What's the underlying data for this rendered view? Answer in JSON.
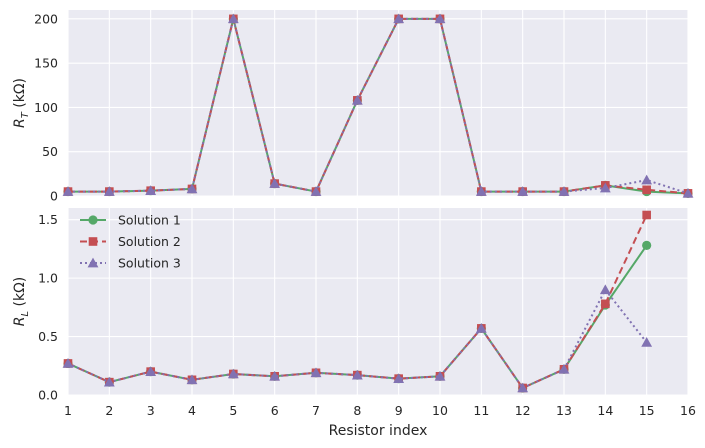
{
  "chart_data": [
    {
      "type": "line",
      "ylabel_main": "R",
      "ylabel_sub": "T",
      "ylabel_unit": " (kΩ)",
      "xlim": [
        1,
        16
      ],
      "ylim": [
        0,
        210
      ],
      "yticks": [
        0,
        50,
        100,
        150,
        200
      ],
      "grid": true,
      "series": [
        {
          "name": "Solution 1",
          "color": "#55a868",
          "marker": "circle",
          "dash": "solid",
          "x": [
            1,
            2,
            3,
            4,
            5,
            6,
            7,
            8,
            9,
            10,
            11,
            12,
            13,
            14,
            15,
            16
          ],
          "values": [
            5,
            5,
            6,
            8,
            200,
            14,
            5,
            108,
            200,
            200,
            5,
            5,
            5,
            12,
            5,
            3
          ]
        },
        {
          "name": "Solution 2",
          "color": "#c44e52",
          "marker": "square",
          "dash": "dashed",
          "x": [
            1,
            2,
            3,
            4,
            5,
            6,
            7,
            8,
            9,
            10,
            11,
            12,
            13,
            14,
            15,
            16
          ],
          "values": [
            5,
            5,
            6,
            8,
            200,
            14,
            5,
            108,
            200,
            200,
            5,
            5,
            5,
            12,
            7,
            3
          ]
        },
        {
          "name": "Solution 3",
          "color": "#8172b2",
          "marker": "triangle",
          "dash": "dotted",
          "x": [
            1,
            2,
            3,
            4,
            5,
            6,
            7,
            8,
            9,
            10,
            11,
            12,
            13,
            14,
            15,
            16
          ],
          "values": [
            5,
            5,
            6,
            8,
            200,
            14,
            5,
            108,
            200,
            200,
            5,
            5,
            5,
            9,
            18,
            3
          ]
        }
      ]
    },
    {
      "type": "line",
      "ylabel_main": "R",
      "ylabel_sub": "L",
      "ylabel_unit": " (kΩ)",
      "xlabel": "Resistor index",
      "xlim": [
        1,
        16
      ],
      "ylim": [
        0,
        1.6
      ],
      "yticks": [
        0.0,
        0.5,
        1.0,
        1.5
      ],
      "ytick_labels": [
        "0.0",
        "0.5",
        "1.0",
        "1.5"
      ],
      "xticks": [
        1,
        2,
        3,
        4,
        5,
        6,
        7,
        8,
        9,
        10,
        11,
        12,
        13,
        14,
        15,
        16
      ],
      "grid": true,
      "legend_position": "upper-left",
      "series": [
        {
          "name": "Solution 1",
          "color": "#55a868",
          "marker": "circle",
          "dash": "solid",
          "x": [
            1,
            2,
            3,
            4,
            5,
            6,
            7,
            8,
            9,
            10,
            11,
            12,
            13,
            14,
            15
          ],
          "values": [
            0.27,
            0.11,
            0.2,
            0.13,
            0.18,
            0.16,
            0.19,
            0.17,
            0.14,
            0.16,
            0.57,
            0.06,
            0.22,
            0.77,
            1.28
          ]
        },
        {
          "name": "Solution 2",
          "color": "#c44e52",
          "marker": "square",
          "dash": "dashed",
          "x": [
            1,
            2,
            3,
            4,
            5,
            6,
            7,
            8,
            9,
            10,
            11,
            12,
            13,
            14,
            15
          ],
          "values": [
            0.27,
            0.11,
            0.2,
            0.13,
            0.18,
            0.16,
            0.19,
            0.17,
            0.14,
            0.16,
            0.57,
            0.06,
            0.22,
            0.78,
            1.54
          ]
        },
        {
          "name": "Solution 3",
          "color": "#8172b2",
          "marker": "triangle",
          "dash": "dotted",
          "x": [
            1,
            2,
            3,
            4,
            5,
            6,
            7,
            8,
            9,
            10,
            11,
            12,
            13,
            14,
            15
          ],
          "values": [
            0.27,
            0.11,
            0.2,
            0.13,
            0.18,
            0.16,
            0.19,
            0.17,
            0.14,
            0.16,
            0.57,
            0.06,
            0.22,
            0.9,
            0.45
          ]
        }
      ]
    }
  ]
}
